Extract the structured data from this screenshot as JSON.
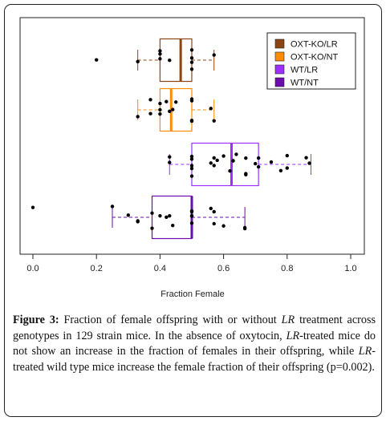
{
  "chart_data": {
    "type": "boxplot",
    "orientation": "horizontal",
    "xlabel": "Fraction Female",
    "xlim": [
      0.0,
      1.0
    ],
    "xticks": [
      "0.0",
      "0.2",
      "0.4",
      "0.6",
      "0.8",
      "1.0"
    ],
    "legend_position": "top-right",
    "groups": [
      {
        "name": "OXT-KO/LR",
        "color": "#8B4513",
        "box": {
          "whisker_low": 0.33,
          "q1": 0.4,
          "median": 0.465,
          "q3": 0.5,
          "whisker_high": 0.57
        },
        "points": [
          0.2,
          0.33,
          0.4,
          0.4,
          0.4,
          0.43,
          0.5,
          0.5,
          0.5,
          0.5,
          0.57
        ]
      },
      {
        "name": "OXT-KO/NT",
        "color": "#FF8C00",
        "box": {
          "whisker_low": 0.33,
          "q1": 0.4,
          "median": 0.435,
          "q3": 0.5,
          "whisker_high": 0.57
        },
        "points": [
          0.33,
          0.37,
          0.37,
          0.4,
          0.4,
          0.4,
          0.42,
          0.43,
          0.44,
          0.45,
          0.5,
          0.5,
          0.5,
          0.5,
          0.56,
          0.57
        ]
      },
      {
        "name": "WT/LR",
        "color": "#9B30FF",
        "box": {
          "whisker_low": 0.43,
          "q1": 0.5,
          "median": 0.625,
          "q3": 0.71,
          "whisker_high": 0.875
        },
        "points": [
          0.43,
          0.43,
          0.5,
          0.5,
          0.5,
          0.5,
          0.5,
          0.56,
          0.57,
          0.57,
          0.58,
          0.6,
          0.62,
          0.63,
          0.63,
          0.64,
          0.67,
          0.67,
          0.67,
          0.7,
          0.71,
          0.71,
          0.75,
          0.78,
          0.8,
          0.8,
          0.86,
          0.87
        ]
      },
      {
        "name": "WT/NT",
        "color": "#6A0DAD",
        "box": {
          "whisker_low": 0.25,
          "q1": 0.375,
          "median": 0.5,
          "q3": 0.5,
          "whisker_high": 0.667
        },
        "points": [
          0.0,
          0.25,
          0.3,
          0.33,
          0.33,
          0.375,
          0.375,
          0.4,
          0.42,
          0.43,
          0.44,
          0.5,
          0.5,
          0.5,
          0.5,
          0.5,
          0.56,
          0.57,
          0.57,
          0.6,
          0.667,
          0.667
        ]
      }
    ]
  },
  "caption": {
    "label": "Figure 3:",
    "parts": [
      {
        "text": " Fraction of female offspring with or without ",
        "italic": false
      },
      {
        "text": "LR",
        "italic": true
      },
      {
        "text": " treatment across genotypes in 129 strain mice. In the absence of oxytocin, ",
        "italic": false
      },
      {
        "text": "LR",
        "italic": true
      },
      {
        "text": "-treated mice do not show an increase in the fraction of females in their offspring, while ",
        "italic": false
      },
      {
        "text": "LR",
        "italic": true
      },
      {
        "text": "-treated wild type mice increase the female fraction of their offspring (p=0.002).",
        "italic": false
      }
    ]
  }
}
